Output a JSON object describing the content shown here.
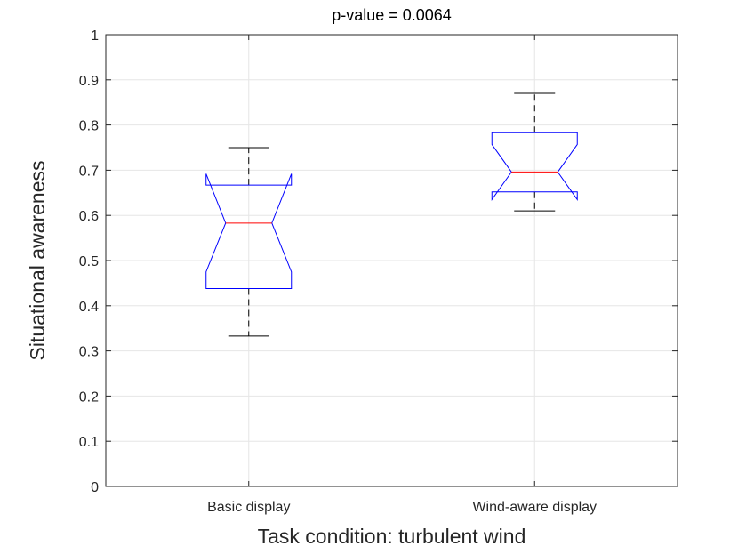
{
  "chart_data": {
    "type": "boxplot",
    "title": "p-value = 0.0064",
    "xlabel": "Task condition: turbulent wind",
    "ylabel": "Situational awareness",
    "categories": [
      "Basic display",
      "Wind-aware display"
    ],
    "ylim": [
      0,
      1
    ],
    "yticks": [
      "0",
      "0.1",
      "0.2",
      "0.3",
      "0.4",
      "0.5",
      "0.6",
      "0.7",
      "0.8",
      "0.9",
      "1"
    ],
    "grid": true,
    "notched": true,
    "boxes": [
      {
        "category": "Basic display",
        "whisker_low": 0.333,
        "q1": 0.438,
        "notch_low": 0.475,
        "median": 0.583,
        "notch_high": 0.692,
        "q3": 0.667,
        "whisker_high": 0.75
      },
      {
        "category": "Wind-aware display",
        "whisker_low": 0.61,
        "q1": 0.652,
        "notch_low": 0.635,
        "median": 0.696,
        "notch_high": 0.757,
        "q3": 0.783,
        "whisker_high": 0.87
      }
    ],
    "colors": {
      "box": "#0000ff",
      "median": "#ff0000",
      "whisker": "#000000",
      "grid": "#e6e6e6",
      "axis": "#262626"
    }
  }
}
